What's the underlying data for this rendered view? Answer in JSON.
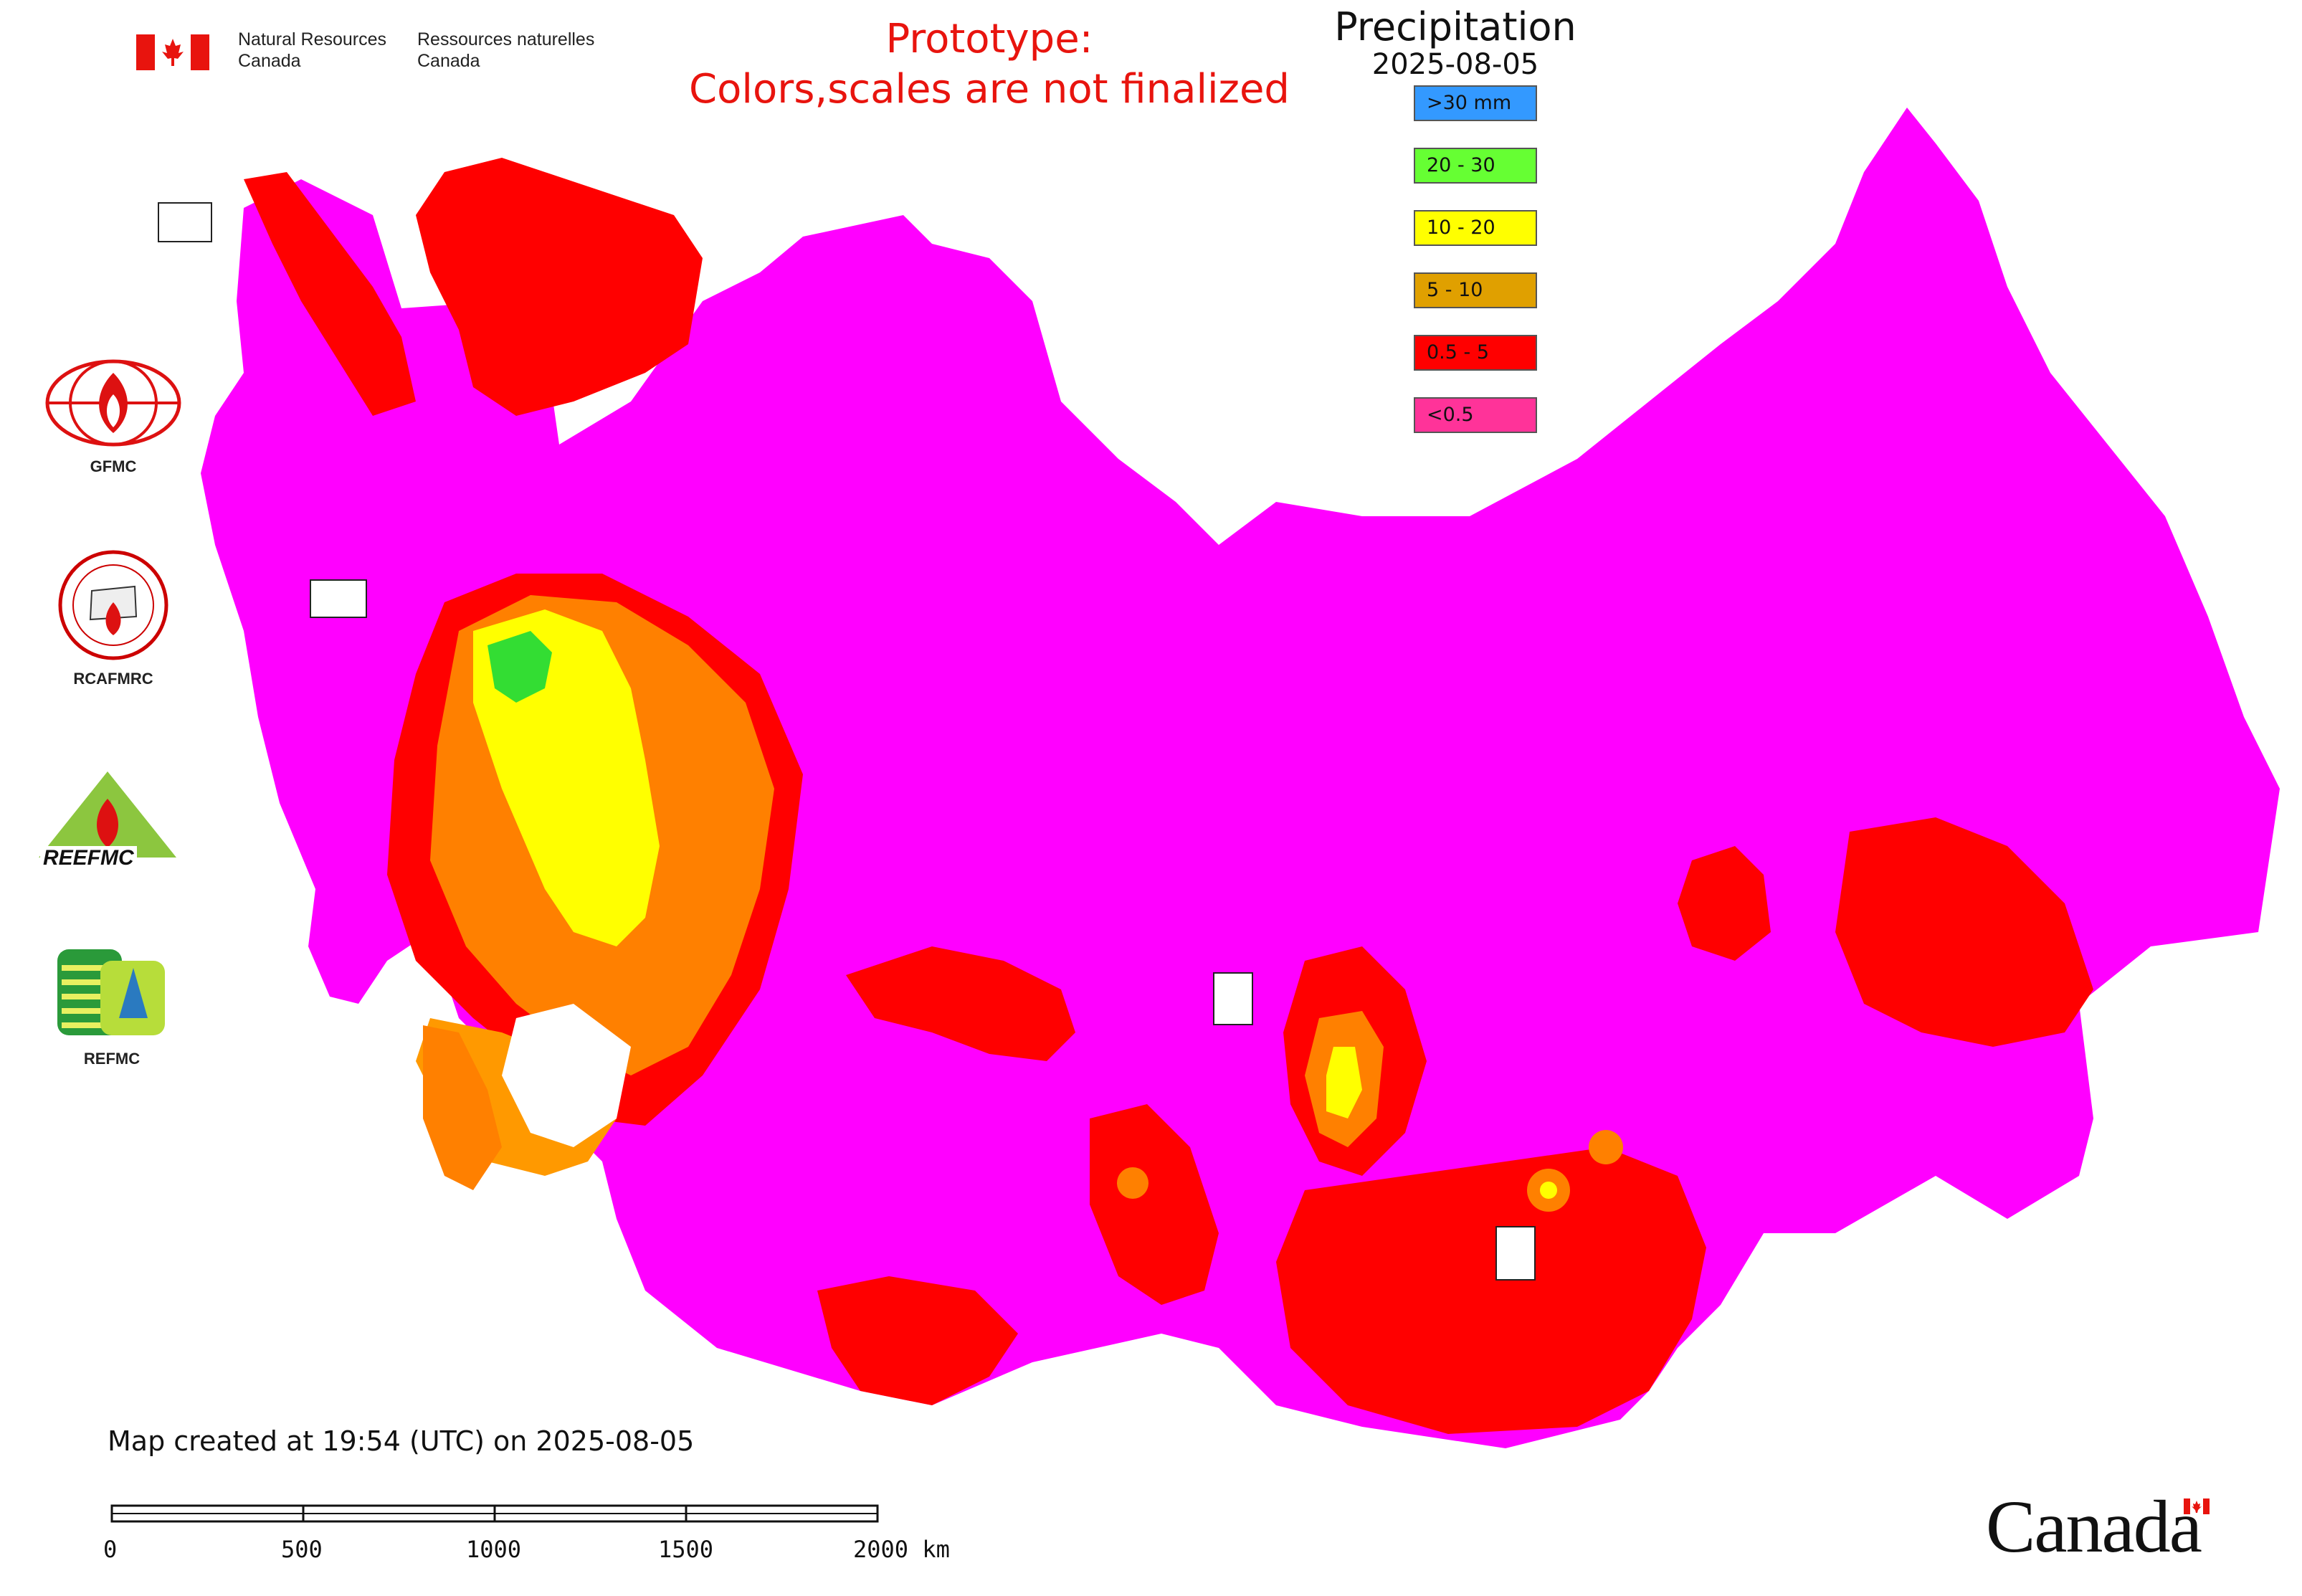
{
  "header": {
    "ministry_en_line1": "Natural Resources",
    "ministry_en_line2": "Canada",
    "ministry_fr_line1": "Ressources naturelles",
    "ministry_fr_line2": "Canada",
    "prototype_line1": "Prototype:",
    "prototype_line2": "Colors,scales are not finalized"
  },
  "legend": {
    "title": "Precipitation",
    "date": "2025-08-05",
    "items": [
      {
        "label": ">30 mm",
        "color": "#3399ff"
      },
      {
        "label": "20 - 30",
        "color": "#66ff33"
      },
      {
        "label": "10 - 20",
        "color": "#ffff00"
      },
      {
        "label": "5 - 10",
        "color": "#e0a000"
      },
      {
        "label": "0.5 - 5",
        "color": "#ff0000"
      },
      {
        "label": "<0.5",
        "color": "#ff3399"
      }
    ]
  },
  "map_colors": {
    "base": "#ff00ff",
    "red": "#ff0000",
    "dark_orange": "#ff8000",
    "light_orange": "#ff9900",
    "yellow": "#ffff00",
    "green": "#33dd33"
  },
  "logos": [
    {
      "caption": "GFMC",
      "icon": "gfmc-flame-globe-icon"
    },
    {
      "caption": "RCAFMRC",
      "icon": "rcafmrc-seal-icon"
    },
    {
      "caption": "",
      "icon": "reefmc-triangle-icon",
      "wordmark": "REEFMC"
    },
    {
      "caption": "REFMC",
      "icon": "refmc-sigma-icon"
    }
  ],
  "footer": {
    "created_note": "Map created at 19:54 (UTC) on 2025-08-05",
    "scale_labels": [
      "0",
      "500",
      "1000",
      "1500",
      "2000 km"
    ],
    "wordmark": "Canada"
  }
}
